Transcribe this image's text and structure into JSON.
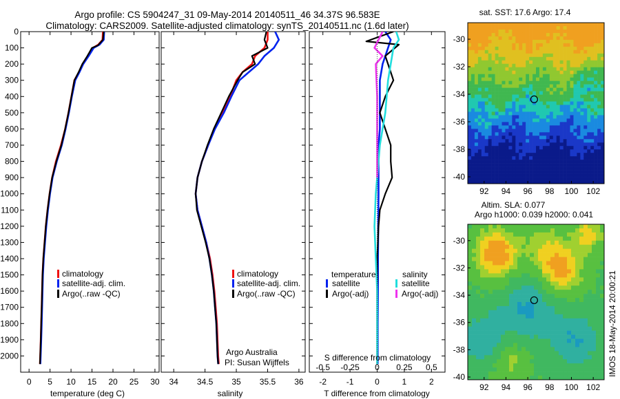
{
  "title": {
    "line1": "Argo profile: CS 5904247_31 09-May-2014 20140511_46 34.37S 96.583E",
    "line2": "Climatology: CARS2009. Satellite-adjusted climatology: synTS_20140511.nc (1.6d later)"
  },
  "colors": {
    "climatology": "#ee1111",
    "satellite": "#0022ee",
    "argo": "#000000",
    "sal_satellite": "#22dddd",
    "sal_argo": "#ee33ee"
  },
  "chart_data": [
    {
      "type": "line",
      "panel": "temperature",
      "xlabel": "temperature (deg C)",
      "xlim": [
        -2,
        31
      ],
      "ylim": [
        2100,
        0
      ],
      "xticks": [
        0,
        5,
        10,
        15,
        20,
        25,
        30
      ],
      "yticks": [
        0,
        100,
        200,
        300,
        400,
        500,
        600,
        700,
        800,
        900,
        1000,
        1100,
        1200,
        1300,
        1400,
        1500,
        1600,
        1700,
        1800,
        1900,
        2000
      ],
      "legend": [
        "climatology",
        "satellite-adj. clim.",
        "Argo(..raw -QC)"
      ],
      "legend_position": "lower-middle",
      "series": [
        {
          "name": "climatology",
          "color": "#ee1111",
          "x": [
            17.6,
            17.5,
            16.5,
            15.2,
            14,
            12.8,
            11.9,
            10.8,
            10.1,
            9.4,
            8.6,
            7.6,
            6.4,
            5.5,
            4.9,
            4.4,
            4.0,
            3.7,
            3.4,
            3.2,
            3.1,
            3.0,
            2.9,
            2.8,
            2.6
          ],
          "y": [
            0,
            50,
            80,
            100,
            150,
            200,
            250,
            300,
            400,
            500,
            600,
            700,
            800,
            900,
            1000,
            1100,
            1200,
            1300,
            1400,
            1500,
            1600,
            1700,
            1800,
            1900,
            2050
          ]
        },
        {
          "name": "satellite-adj. clim.",
          "color": "#0022ee",
          "x": [
            17.9,
            17.8,
            16.8,
            15.4,
            14.2,
            12.9,
            12.0,
            11.0,
            10.2,
            9.5,
            8.7,
            7.8,
            6.6,
            5.6,
            5.0,
            4.5,
            4.1,
            3.8,
            3.5,
            3.3,
            3.2,
            3.1,
            3.0,
            2.9,
            2.7
          ],
          "y": [
            0,
            50,
            80,
            100,
            150,
            200,
            250,
            300,
            400,
            500,
            600,
            700,
            800,
            900,
            1000,
            1100,
            1200,
            1300,
            1400,
            1500,
            1600,
            1700,
            1800,
            1900,
            2050
          ]
        },
        {
          "name": "Argo(..raw -QC)",
          "color": "#000000",
          "x": [
            17.8,
            17.6,
            16.4,
            15.0,
            13.9,
            12.7,
            11.8,
            10.8,
            10.1,
            9.4,
            8.6,
            7.7,
            6.5,
            5.5,
            4.9,
            4.4,
            4.0,
            3.7,
            3.4,
            3.2,
            3.1,
            3.0,
            2.9,
            2.8,
            2.6
          ],
          "y": [
            0,
            50,
            85,
            100,
            150,
            200,
            250,
            300,
            400,
            500,
            600,
            700,
            800,
            900,
            1000,
            1100,
            1200,
            1300,
            1400,
            1500,
            1600,
            1700,
            1800,
            1900,
            2050
          ]
        }
      ]
    },
    {
      "type": "line",
      "panel": "salinity",
      "xlabel": "salinity",
      "xlim": [
        33.8,
        36.1
      ],
      "ylim": [
        2100,
        0
      ],
      "xticks": [
        34,
        34.5,
        35,
        35.5,
        36
      ],
      "legend": [
        "climatology",
        "satellite-adj. clim.",
        "Argo(..raw -QC)"
      ],
      "legend_position": "lower-right",
      "annotation": [
        "Argo Australia",
        "PI: Susan Wijffels"
      ],
      "series": [
        {
          "name": "climatology",
          "color": "#ee1111",
          "x": [
            35.5,
            35.5,
            35.45,
            35.3,
            35.25,
            35.1,
            35.0,
            34.9,
            34.78,
            34.65,
            34.55,
            34.45,
            34.38,
            34.35,
            34.38,
            34.45,
            34.52,
            34.58,
            34.62,
            34.65,
            34.67,
            34.69,
            34.7,
            34.71,
            34.72
          ],
          "y": [
            0,
            50,
            100,
            150,
            200,
            250,
            300,
            400,
            500,
            600,
            700,
            800,
            900,
            1000,
            1100,
            1200,
            1300,
            1400,
            1500,
            1600,
            1700,
            1800,
            1900,
            2000,
            2050
          ]
        },
        {
          "name": "satellite-adj. clim.",
          "color": "#0022ee",
          "x": [
            35.62,
            35.68,
            35.6,
            35.45,
            35.35,
            35.2,
            35.05,
            34.92,
            34.8,
            34.66,
            34.55,
            34.45,
            34.38,
            34.35,
            34.38,
            34.45,
            34.52,
            34.57,
            34.61,
            34.64,
            34.66,
            34.68,
            34.69,
            34.7,
            34.71
          ],
          "y": [
            0,
            50,
            100,
            150,
            200,
            250,
            300,
            400,
            500,
            600,
            700,
            800,
            900,
            1000,
            1100,
            1200,
            1300,
            1400,
            1500,
            1600,
            1700,
            1800,
            1900,
            2000,
            2050
          ]
        },
        {
          "name": "Argo(..raw -QC)",
          "color": "#000000",
          "x": [
            35.48,
            35.45,
            35.5,
            35.25,
            35.3,
            35.1,
            35.02,
            34.88,
            34.76,
            34.64,
            34.54,
            34.45,
            34.38,
            34.35,
            34.37,
            34.44,
            34.51,
            34.57,
            34.61,
            34.64,
            34.66,
            34.68,
            34.69,
            34.7,
            34.71
          ],
          "y": [
            0,
            50,
            100,
            150,
            200,
            250,
            300,
            400,
            500,
            600,
            700,
            800,
            900,
            1000,
            1100,
            1200,
            1300,
            1400,
            1500,
            1600,
            1700,
            1800,
            1900,
            2000,
            2050
          ]
        }
      ]
    },
    {
      "type": "line",
      "panel": "difference",
      "xlabel": "T difference from climatology",
      "xlabel_top": "S difference from climatology",
      "xlim": [
        -2.5,
        2.5
      ],
      "ylim": [
        2100,
        0
      ],
      "xticks": [
        -2,
        -1,
        0,
        1,
        2
      ],
      "xticks_s": [
        -0.5,
        -0.25,
        0,
        0.25,
        0.5
      ],
      "xticks_s_labels": [
        "-0.5",
        "-0.25",
        "0",
        "0.25",
        "0.5"
      ],
      "legend": {
        "temperature_heading": "temperature",
        "salinity_heading": "salinity",
        "items": [
          {
            "label": "satellite",
            "color": "#0022ee"
          },
          {
            "label": "Argo(-adj)",
            "color": "#000000"
          },
          {
            "label": "satellite",
            "color": "#22dddd"
          },
          {
            "label": "Argo(-adj)",
            "color": "#ee33ee"
          }
        ]
      },
      "series": [
        {
          "name": "T satellite",
          "color": "#0022ee",
          "x": [
            0.3,
            0.5,
            0.4,
            0.2,
            0.1,
            0.1,
            0.1,
            0.1,
            0.05,
            0.05,
            0.05,
            0.05,
            0.04,
            0.03,
            0.03,
            0.02,
            0.02,
            0.02
          ],
          "y": [
            0,
            50,
            100,
            200,
            300,
            400,
            500,
            600,
            700,
            800,
            900,
            1000,
            1200,
            1400,
            1600,
            1800,
            1900,
            2050
          ]
        },
        {
          "name": "T Argo(-adj)",
          "color": "#000000",
          "x": [
            0.6,
            -0.4,
            0.8,
            0.3,
            0.5,
            0.6,
            0.3,
            0.1,
            0.5,
            0.5,
            0.55,
            0.3,
            0.1,
            0.05,
            0.0,
            0.0,
            0.0,
            0.0
          ],
          "y": [
            0,
            60,
            80,
            150,
            250,
            300,
            400,
            500,
            700,
            800,
            900,
            1000,
            1100,
            1200,
            1400,
            1600,
            1800,
            2050
          ]
        },
        {
          "name": "S satellite",
          "color": "#22dddd",
          "x": [
            0.7,
            0.8,
            0.6,
            0.5,
            0.4,
            0.35,
            0.3,
            0.2,
            0.1,
            0.05,
            0.0,
            -0.05,
            -0.1,
            -0.05,
            0.0,
            0.0,
            0.0
          ],
          "y": [
            0,
            50,
            100,
            200,
            300,
            400,
            500,
            600,
            700,
            800,
            900,
            1000,
            1200,
            1400,
            1600,
            1800,
            2050
          ]
        },
        {
          "name": "S Argo(-adj)",
          "color": "#ee33ee",
          "x": [
            0.2,
            -0.1,
            0.2,
            -0.05,
            0.0,
            0.0,
            0.0,
            0.0,
            0.0
          ],
          "y": [
            0,
            100,
            150,
            200,
            400,
            500,
            600,
            700,
            900
          ]
        }
      ]
    },
    {
      "type": "heatmap",
      "panel": "sst-map",
      "title": "sat. SST: 17.6 Argo: 17.4",
      "xlim": [
        90.5,
        103
      ],
      "ylim": [
        -40.5,
        -28.8
      ],
      "xticks": [
        92,
        94,
        96,
        98,
        100,
        102
      ],
      "yticks": [
        -30,
        -32,
        -34,
        -36,
        -38,
        -40
      ],
      "marker": {
        "lon": 96.583,
        "lat": -34.37
      }
    },
    {
      "type": "heatmap",
      "panel": "sla-map",
      "title": [
        "Altim. SLA: 0.077",
        "Argo h1000: 0.039 h2000: 0.041"
      ],
      "xlim": [
        90.5,
        103
      ],
      "ylim": [
        -40.2,
        -28.8
      ],
      "xticks": [
        92,
        94,
        96,
        98,
        100,
        102
      ],
      "yticks": [
        -30,
        -32,
        -34,
        -36,
        -38,
        -40
      ],
      "marker": {
        "lon": 96.583,
        "lat": -34.37
      }
    }
  ],
  "side_label": "IMOS 18-May-2014 20:00:21"
}
